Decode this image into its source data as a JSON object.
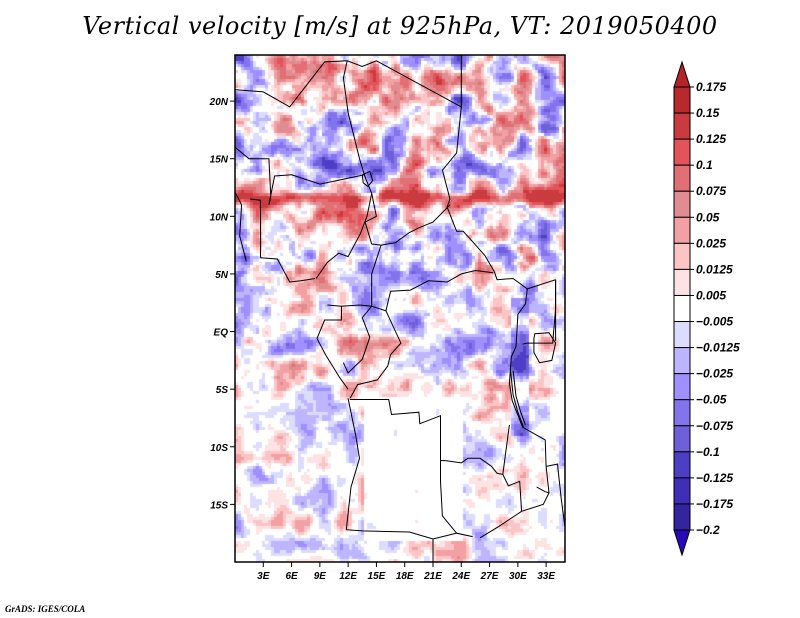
{
  "title": "Vertical velocity [m/s] at 925hPa, VT: 2019050400",
  "footer": "GrADS: IGES/COLA",
  "chart_data": {
    "type": "heatmap",
    "title": "Vertical velocity [m/s] at 925hPa, VT: 2019050400",
    "variable": "Vertical velocity",
    "units": "m/s",
    "level": "925hPa",
    "valid_time": "2019050400",
    "xlabel": "",
    "ylabel": "",
    "x_range_deg": [
      0,
      35
    ],
    "y_range_deg": [
      -20,
      24
    ],
    "x_ticks": [
      {
        "value": 3,
        "label": "3E"
      },
      {
        "value": 6,
        "label": "6E"
      },
      {
        "value": 9,
        "label": "9E"
      },
      {
        "value": 12,
        "label": "12E"
      },
      {
        "value": 15,
        "label": "15E"
      },
      {
        "value": 18,
        "label": "18E"
      },
      {
        "value": 21,
        "label": "21E"
      },
      {
        "value": 24,
        "label": "24E"
      },
      {
        "value": 27,
        "label": "27E"
      },
      {
        "value": 30,
        "label": "30E"
      },
      {
        "value": 33,
        "label": "33E"
      }
    ],
    "y_ticks": [
      {
        "value": 20,
        "label": "20N"
      },
      {
        "value": 15,
        "label": "15N"
      },
      {
        "value": 10,
        "label": "10N"
      },
      {
        "value": 5,
        "label": "5N"
      },
      {
        "value": 0,
        "label": "EQ"
      },
      {
        "value": -5,
        "label": "5S"
      },
      {
        "value": -10,
        "label": "10S"
      },
      {
        "value": -15,
        "label": "15S"
      }
    ],
    "colorbar": {
      "position": "right",
      "levels": [
        "0.175",
        "0.15",
        "0.125",
        "0.1",
        "0.075",
        "0.05",
        "0.025",
        "0.0125",
        "0.005",
        "-0.005",
        "-0.0125",
        "-0.025",
        "-0.05",
        "-0.075",
        "-0.1",
        "-0.125",
        "-0.175",
        "-0.2"
      ],
      "top_arrow_color": "#b22427",
      "bottom_arrow_color": "#2a0ab8",
      "cell_colors": [
        "#b8292b",
        "#c93b3e",
        "#e5535a",
        "#e26f73",
        "#e08c90",
        "#f2a0a2",
        "#fbc5c6",
        "#fee3e4",
        "#ffffff",
        "#dcdcff",
        "#bdb5ff",
        "#9f8fff",
        "#8374ec",
        "#6e60d8",
        "#4c3fc6",
        "#3f2eb8",
        "#33249f"
      ]
    },
    "field_description": "Noisy mesoscale field of positive (red) and negative (blue) vertical velocity over west-central Africa; strong red convergence band near 11-12N; mostly weak values south of equator"
  }
}
